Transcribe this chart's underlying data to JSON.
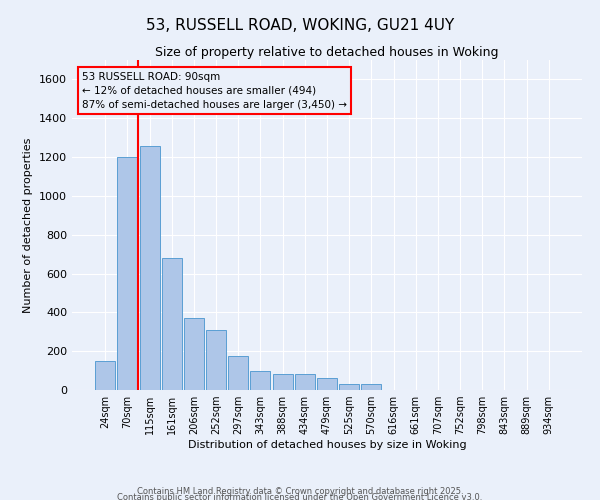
{
  "title1": "53, RUSSELL ROAD, WOKING, GU21 4UY",
  "title2": "Size of property relative to detached houses in Woking",
  "xlabel": "Distribution of detached houses by size in Woking",
  "ylabel": "Number of detached properties",
  "categories": [
    "24sqm",
    "70sqm",
    "115sqm",
    "161sqm",
    "206sqm",
    "252sqm",
    "297sqm",
    "343sqm",
    "388sqm",
    "434sqm",
    "479sqm",
    "525sqm",
    "570sqm",
    "616sqm",
    "661sqm",
    "707sqm",
    "752sqm",
    "798sqm",
    "843sqm",
    "889sqm",
    "934sqm"
  ],
  "values": [
    150,
    1200,
    1255,
    680,
    370,
    310,
    175,
    100,
    85,
    80,
    60,
    30,
    30,
    0,
    0,
    0,
    0,
    0,
    0,
    0,
    0
  ],
  "bar_color": "#aec6e8",
  "bar_edge_color": "#5a9fd4",
  "red_line_x": 1.5,
  "ylim": [
    0,
    1700
  ],
  "yticks": [
    0,
    200,
    400,
    600,
    800,
    1000,
    1200,
    1400,
    1600
  ],
  "annotation_text_line1": "53 RUSSELL ROAD: 90sqm",
  "annotation_text_line2": "← 12% of detached houses are smaller (494)",
  "annotation_text_line3": "87% of semi-detached houses are larger (3,450) →",
  "bg_color": "#eaf0fa",
  "grid_color": "#ffffff",
  "footer1": "Contains HM Land Registry data © Crown copyright and database right 2025.",
  "footer2": "Contains public sector information licensed under the Open Government Licence v3.0."
}
